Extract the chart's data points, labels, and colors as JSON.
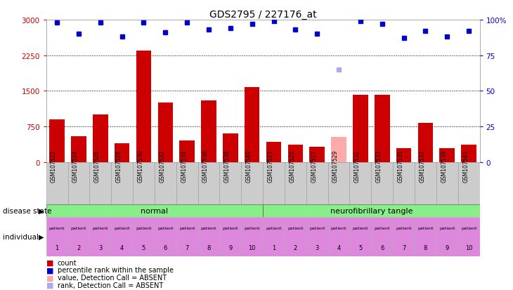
{
  "title": "GDS2795 / 227176_at",
  "samples": [
    "GSM107522",
    "GSM107524",
    "GSM107526",
    "GSM107528",
    "GSM107530",
    "GSM107532",
    "GSM107534",
    "GSM107536",
    "GSM107538",
    "GSM107540",
    "GSM107523",
    "GSM107525",
    "GSM107527",
    "GSM107529",
    "GSM107531",
    "GSM107533",
    "GSM107535",
    "GSM107537",
    "GSM107539",
    "GSM107541"
  ],
  "counts": [
    900,
    550,
    1000,
    400,
    2350,
    1250,
    450,
    1300,
    600,
    1580,
    430,
    370,
    320,
    530,
    1420,
    1420,
    300,
    830,
    290,
    370
  ],
  "percentile_ranks": [
    98,
    90,
    98,
    88,
    98,
    91,
    98,
    93,
    94,
    97,
    99,
    93,
    90,
    65,
    99,
    97,
    87,
    92,
    88,
    92
  ],
  "absent_mask": [
    false,
    false,
    false,
    false,
    false,
    false,
    false,
    false,
    false,
    false,
    false,
    false,
    false,
    true,
    false,
    false,
    false,
    false,
    false,
    false
  ],
  "disease_groups": [
    {
      "label": "normal",
      "start": 0,
      "end": 9
    },
    {
      "label": "neurofibrillary tangle",
      "start": 10,
      "end": 19
    }
  ],
  "individuals": [
    1,
    2,
    3,
    4,
    5,
    6,
    7,
    8,
    9,
    10,
    1,
    2,
    3,
    4,
    5,
    6,
    7,
    8,
    9,
    10
  ],
  "ylim_left": [
    0,
    3000
  ],
  "ylim_right": [
    0,
    100
  ],
  "yticks_left": [
    0,
    750,
    1500,
    2250,
    3000
  ],
  "yticks_right": [
    0,
    25,
    50,
    75,
    100
  ],
  "bar_color_normal": "#cc0000",
  "bar_color_absent": "#ffaaaa",
  "rank_color_normal": "#0000cc",
  "rank_color_absent": "#aaaaee",
  "disease_state_color": "#88ee88",
  "individual_color": "#dd88dd",
  "label_color_left": "#cc0000",
  "label_color_right": "#0000cc",
  "bg_color": "#ffffff",
  "grid_color": "#000000",
  "legend_items": [
    {
      "label": "count",
      "color": "#cc0000"
    },
    {
      "label": "percentile rank within the sample",
      "color": "#0000cc"
    },
    {
      "label": "value, Detection Call = ABSENT",
      "color": "#ffaaaa"
    },
    {
      "label": "rank, Detection Call = ABSENT",
      "color": "#aaaaee"
    }
  ]
}
